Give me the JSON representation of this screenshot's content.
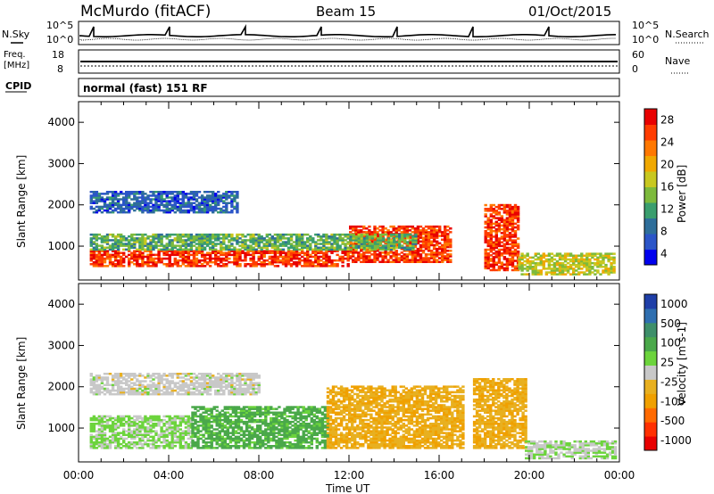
{
  "header": {
    "station": "McMurdo (fitACF)",
    "beam": "Beam 15",
    "date": "01/Oct/2015"
  },
  "top_panels": {
    "nsky_label": "N.Sky",
    "nsearch_label": "N.Search",
    "noise_ticks_left": [
      "10^5",
      "10^0"
    ],
    "noise_ticks_right": [
      "10^5",
      "10^0"
    ],
    "freq_label_1": "Freq.",
    "freq_label_2": "[MHz]",
    "freq_ticks": [
      "18",
      "8"
    ],
    "nave_label": "Nave",
    "nave_ticks": [
      "60",
      "0"
    ],
    "cpid_label": "CPID",
    "cpid_text": "normal (fast) 151 RF"
  },
  "power_colorbar": {
    "label": "Power [dB]",
    "ticks": [
      "28",
      "24",
      "20",
      "16",
      "12",
      "8",
      "4"
    ],
    "colors": [
      "#0000ee",
      "#2b55c8",
      "#2e6e9a",
      "#3a9e6e",
      "#7dba3c",
      "#c8c820",
      "#f0a800",
      "#ff7800",
      "#ff3c00",
      "#e80000"
    ]
  },
  "velocity_colorbar": {
    "label": "Velocity [m s-1]",
    "ticks": [
      "1000",
      "500",
      "100",
      "25",
      "-25",
      "-100",
      "-500",
      "-1000"
    ],
    "colors": [
      "#1f3fa8",
      "#2f6fb0",
      "#3e8f6a",
      "#4aa84a",
      "#6cd43c",
      "#c8c8c8",
      "#e8b020",
      "#f0a000",
      "#ff6a00",
      "#ff3000",
      "#e80000"
    ]
  },
  "chart_data": [
    {
      "type": "heatmap",
      "name": "Power",
      "ylabel": "Slant Range [km]",
      "xlabel": "Time UT",
      "ylim": [
        180,
        4500
      ],
      "yticks": [
        1000,
        2000,
        3000,
        4000
      ],
      "xlim": [
        0,
        24
      ],
      "xticks": [
        "00:00",
        "04:00",
        "08:00",
        "12:00",
        "16:00",
        "20:00",
        "00:00"
      ],
      "units": "dB",
      "regions": [
        {
          "t0": 0.5,
          "t1": 12.0,
          "r0": 500,
          "r1": 900,
          "value": 26
        },
        {
          "t0": 12.0,
          "t1": 16.5,
          "r0": 600,
          "r1": 1500,
          "value": 26
        },
        {
          "t0": 18.0,
          "t1": 19.5,
          "r0": 400,
          "r1": 2000,
          "value": 26
        },
        {
          "t0": 0.5,
          "t1": 15.0,
          "r0": 900,
          "r1": 1300,
          "value": 12
        },
        {
          "t0": 0.5,
          "t1": 7.0,
          "r0": 1800,
          "r1": 2300,
          "value": 6
        },
        {
          "t0": 19.5,
          "t1": 23.8,
          "r0": 300,
          "r1": 800,
          "value": 16
        }
      ]
    },
    {
      "type": "heatmap",
      "name": "Velocity",
      "ylabel": "Slant Range [km]",
      "xlabel": "Time UT",
      "ylim": [
        180,
        4500
      ],
      "yticks": [
        1000,
        2000,
        3000,
        4000
      ],
      "xlim": [
        0,
        24
      ],
      "xticks": [
        "00:00",
        "04:00",
        "08:00",
        "12:00",
        "16:00",
        "20:00",
        "00:00"
      ],
      "units": "m s-1",
      "regions": [
        {
          "t0": 0.5,
          "t1": 5.0,
          "r0": 500,
          "r1": 1300,
          "value": 150
        },
        {
          "t0": 5.0,
          "t1": 11.0,
          "r0": 500,
          "r1": 1500,
          "value": 400
        },
        {
          "t0": 0.5,
          "t1": 8.0,
          "r0": 1800,
          "r1": 2300,
          "value": 0
        },
        {
          "t0": 11.0,
          "t1": 17.0,
          "r0": 500,
          "r1": 2000,
          "value": -300
        },
        {
          "t0": 17.5,
          "t1": 19.8,
          "r0": 500,
          "r1": 2200,
          "value": -300
        },
        {
          "t0": 19.8,
          "t1": 23.8,
          "r0": 250,
          "r1": 700,
          "value": 100
        }
      ]
    }
  ]
}
